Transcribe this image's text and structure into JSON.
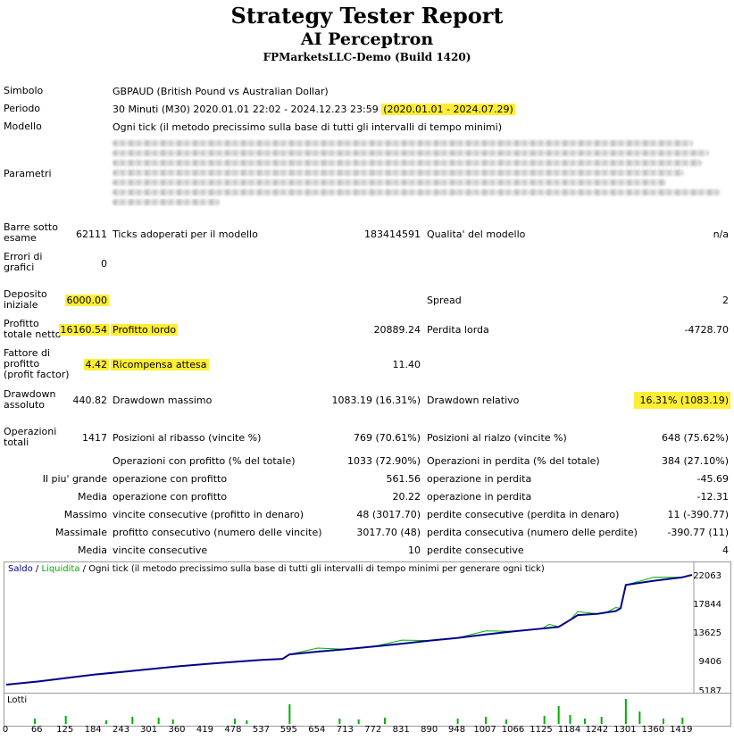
{
  "header": {
    "title": "Strategy Tester Report",
    "subtitle": "AI Perceptron",
    "broker": "FPMarketsLLC-Demo (Build 1420)"
  },
  "info": {
    "simbolo_label": "Simbolo",
    "simbolo_value": "GBPAUD (British Pound vs Australian Dollar)",
    "periodo_label": "Periodo",
    "periodo_value": "30 Minuti (M30) 2020.01.01 22:02 - 2024.12.23 23:59",
    "periodo_highlight": "(2020.01.01 - 2024.07.29)",
    "modello_label": "Modello",
    "modello_value": "Ogni tick (il metodo precissimo sulla base di tutti gli intervalli di tempo minimi)",
    "parametri_label": "Parametri"
  },
  "stats": {
    "barre_label1": "Barre sotto",
    "barre_label2": "esame",
    "barre_value": "62111",
    "ticks_label": "Ticks adoperati per il modello",
    "ticks_value": "183414591",
    "qualita_label": "Qualita' del modello",
    "qualita_value": "n/a",
    "errori_label1": "Errori di",
    "errori_label2": "grafici",
    "errori_value": "0",
    "deposito_label1": "Deposito",
    "deposito_label2": "iniziale",
    "deposito_value": "6000.00",
    "spread_label": "Spread",
    "spread_value": "2",
    "profitto_label1": "Profitto",
    "profitto_label2": "totale netto",
    "profitto_value": "16160.54",
    "lordo_label": "Profitto lordo",
    "lordo_value": "20889.24",
    "perdita_lorda_label": "Perdita lorda",
    "perdita_lorda_value": "-4728.70",
    "fattore_label1": "Fattore di",
    "fattore_label2": "profitto",
    "fattore_label3": "(profit factor)",
    "fattore_value": "4.42",
    "ricompensa_label": "Ricompensa attesa",
    "ricompensa_value": "11.40",
    "dd_ass_label1": "Drawdown",
    "dd_ass_label2": "assoluto",
    "dd_ass_value": "440.82",
    "dd_max_label": "Drawdown massimo",
    "dd_max_value": "1083.19 (16.31%)",
    "dd_rel_label": "Drawdown relativo",
    "dd_rel_value": "16.31% (1083.19)",
    "op_label1": "Operazioni",
    "op_label2": "totali",
    "op_value": "1417",
    "short_label": "Posizioni al ribasso (vincite %)",
    "short_value": "769 (70.61%)",
    "long_label": "Posizioni al rialzo (vincite %)",
    "long_value": "648 (75.62%)",
    "win_label": "Operazioni con profitto (% del totale)",
    "win_value": "1033 (72.90%)",
    "loss_label": "Operazioni in perdita (% del totale)",
    "loss_value": "384 (27.10%)",
    "largest_label": "Il piu' grande",
    "largest_win_label": "operazione con profitto",
    "largest_win_value": "561.56",
    "largest_loss_label": "operazione in perdita",
    "largest_loss_value": "-45.69",
    "media_label": "Media",
    "avg_win_label": "operazione con profitto",
    "avg_win_value": "20.22",
    "avg_loss_label": "operazione in perdita",
    "avg_loss_value": "-12.31",
    "massimo_label": "Massimo",
    "max_cons_win_label": "vincite consecutive (profitto in denaro)",
    "max_cons_win_value": "48 (3017.70)",
    "max_cons_loss_label": "perdite consecutive (perdita in denaro)",
    "max_cons_loss_value": "11 (-390.77)",
    "massimale_label": "Massimale",
    "maxl_cons_win_label": "profitto consecutivo (numero delle vincite)",
    "maxl_cons_win_value": "3017.70 (48)",
    "maxl_cons_loss_label": "perdita consecutiva (numero delle perdite)",
    "maxl_cons_loss_value": "-390.77 (11)",
    "media2_label": "Media",
    "avg_cons_win_label": "vincite consecutive",
    "avg_cons_win_value": "10",
    "avg_cons_loss_label": "perdite consecutive",
    "avg_cons_loss_value": "4"
  },
  "chart_legend": {
    "saldo": "Saldo",
    "sep": " / ",
    "liquidita": "Liquidita",
    "rest": " / Ogni tick (il metodo precissimo sulla base di tutti gli intervalli di tempo minimi per generare ogni tick)",
    "lotti": "Lotti"
  },
  "colors": {
    "balance": "#00008b",
    "equity": "#00b000",
    "highlight": "#ffee33",
    "lots": "#00b000"
  },
  "chart_data": {
    "type": "line",
    "title": "",
    "ylabel": "",
    "y_ticks": [
      "22063",
      "17844",
      "13625",
      "9406",
      "5187"
    ],
    "x_ticks": [
      "0",
      "66",
      "125",
      "184",
      "243",
      "301",
      "360",
      "419",
      "478",
      "537",
      "595",
      "654",
      "713",
      "772",
      "831",
      "890",
      "948",
      "1007",
      "1066",
      "1125",
      "1184",
      "1242",
      "1301",
      "1360",
      "1419"
    ],
    "xlim": [
      0,
      1440
    ],
    "ylim": [
      5187,
      22063
    ],
    "series": [
      {
        "name": "Saldo",
        "x": [
          0,
          66,
          125,
          184,
          243,
          301,
          360,
          419,
          478,
          537,
          580,
          595,
          654,
          713,
          772,
          831,
          890,
          948,
          1007,
          1066,
          1125,
          1140,
          1160,
          1184,
          1200,
          1242,
          1260,
          1280,
          1290,
          1301,
          1360,
          1419,
          1440
        ],
        "y": [
          6100,
          6550,
          7050,
          7550,
          7950,
          8350,
          8750,
          9100,
          9400,
          9700,
          9850,
          10500,
          10900,
          11250,
          11650,
          12050,
          12500,
          12900,
          13400,
          13850,
          14250,
          14350,
          14500,
          15500,
          16200,
          16400,
          16600,
          16800,
          17200,
          20600,
          21200,
          21700,
          22063
        ]
      }
    ],
    "lots_bars_x": [
      60,
      125,
      210,
      265,
      320,
      350,
      480,
      505,
      595,
      700,
      740,
      795,
      948,
      1007,
      1050,
      1130,
      1160,
      1184,
      1215,
      1250,
      1301,
      1330,
      1380,
      1420
    ]
  }
}
